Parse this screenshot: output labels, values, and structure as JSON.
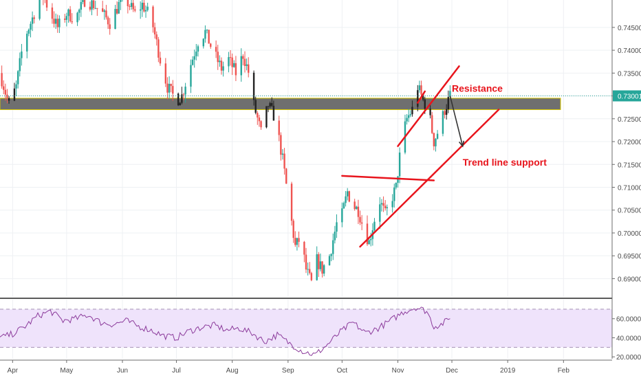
{
  "chart_data": {
    "type": "candlestick",
    "price_axis": {
      "ylim": [
        0.686,
        0.751
      ],
      "ticks": [
        0.745,
        0.74,
        0.735,
        0.73,
        0.725,
        0.72,
        0.715,
        0.71,
        0.705,
        0.7,
        0.695,
        0.69
      ],
      "tick_labels": [
        "0.74500",
        "0.74000",
        "0.73500",
        "0.73000",
        "0.72500",
        "0.72000",
        "0.71500",
        "0.71000",
        "0.70500",
        "0.70000",
        "0.69500",
        "0.69000"
      ],
      "last_price": 0.73001,
      "last_price_label": "0.73001"
    },
    "time_axis": {
      "xlim": [
        "2018-03-25",
        "2019-02-28"
      ],
      "ticks": [
        {
          "date": "2018-04-01",
          "label": "Apr"
        },
        {
          "date": "2018-05-01",
          "label": "May"
        },
        {
          "date": "2018-06-01",
          "label": "Jun"
        },
        {
          "date": "2018-07-01",
          "label": "Jul"
        },
        {
          "date": "2018-08-01",
          "label": "Aug"
        },
        {
          "date": "2018-09-01",
          "label": "Sep"
        },
        {
          "date": "2018-10-01",
          "label": "Oct"
        },
        {
          "date": "2018-11-01",
          "label": "Nov"
        },
        {
          "date": "2018-12-01",
          "label": "Dec"
        },
        {
          "date": "2019-01-01",
          "label": "2019"
        },
        {
          "date": "2019-02-01",
          "label": "Feb"
        }
      ]
    },
    "price_path": [
      [
        "2018-03-25",
        0.735
      ],
      [
        "2018-03-30",
        0.728
      ],
      [
        "2018-04-03",
        0.732
      ],
      [
        "2018-04-07",
        0.742
      ],
      [
        "2018-04-12",
        0.747
      ],
      [
        "2018-04-17",
        0.753
      ],
      [
        "2018-04-21",
        0.749
      ],
      [
        "2018-04-26",
        0.745
      ],
      [
        "2018-05-01",
        0.748
      ],
      [
        "2018-05-06",
        0.747
      ],
      [
        "2018-05-11",
        0.751
      ],
      [
        "2018-05-16",
        0.75
      ],
      [
        "2018-05-21",
        0.748
      ],
      [
        "2018-05-25",
        0.746
      ],
      [
        "2018-05-30",
        0.75
      ],
      [
        "2018-06-03",
        0.751
      ],
      [
        "2018-06-08",
        0.748
      ],
      [
        "2018-06-12",
        0.75
      ],
      [
        "2018-06-17",
        0.747
      ],
      [
        "2018-06-22",
        0.738
      ],
      [
        "2018-06-26",
        0.732
      ],
      [
        "2018-07-01",
        0.729
      ],
      [
        "2018-07-04",
        0.73
      ],
      [
        "2018-07-09",
        0.737
      ],
      [
        "2018-07-13",
        0.742
      ],
      [
        "2018-07-17",
        0.744
      ],
      [
        "2018-07-21",
        0.74
      ],
      [
        "2018-07-26",
        0.736
      ],
      [
        "2018-07-30",
        0.738
      ],
      [
        "2018-08-03",
        0.735
      ],
      [
        "2018-08-07",
        0.739
      ],
      [
        "2018-08-11",
        0.734
      ],
      [
        "2018-08-13",
        0.728
      ],
      [
        "2018-08-17",
        0.722
      ],
      [
        "2018-08-21",
        0.728
      ],
      [
        "2018-08-25",
        0.725
      ],
      [
        "2018-08-29",
        0.716
      ],
      [
        "2018-09-02",
        0.705
      ],
      [
        "2018-09-05",
        0.697
      ],
      [
        "2018-09-08",
        0.699
      ],
      [
        "2018-09-11",
        0.692
      ],
      [
        "2018-09-14",
        0.689
      ],
      [
        "2018-09-17",
        0.694
      ],
      [
        "2018-09-20",
        0.692
      ],
      [
        "2018-09-24",
        0.695
      ],
      [
        "2018-09-28",
        0.702
      ],
      [
        "2018-10-01",
        0.704
      ],
      [
        "2018-10-04",
        0.709
      ],
      [
        "2018-10-07",
        0.706
      ],
      [
        "2018-10-10",
        0.705
      ],
      [
        "2018-10-13",
        0.701
      ],
      [
        "2018-10-16",
        0.698
      ],
      [
        "2018-10-19",
        0.703
      ],
      [
        "2018-10-22",
        0.707
      ],
      [
        "2018-10-25",
        0.704
      ],
      [
        "2018-10-28",
        0.707
      ],
      [
        "2018-10-31",
        0.71
      ],
      [
        "2018-11-03",
        0.72
      ],
      [
        "2018-11-06",
        0.725
      ],
      [
        "2018-11-09",
        0.727
      ],
      [
        "2018-11-12",
        0.732
      ],
      [
        "2018-11-15",
        0.729
      ],
      [
        "2018-11-18",
        0.727
      ],
      [
        "2018-11-21",
        0.72
      ],
      [
        "2018-11-24",
        0.723
      ],
      [
        "2018-11-27",
        0.727
      ],
      [
        "2018-11-30",
        0.73
      ]
    ],
    "support_resistance_zone": {
      "from": 0.727,
      "to": 0.7295
    },
    "drawings": [
      {
        "name": "upper-channel-line",
        "from": [
          "2018-11-01",
          0.719
        ],
        "to": [
          "2018-12-05",
          0.7365
        ]
      },
      {
        "name": "lower-channel-stub",
        "from": [
          "2018-11-12",
          0.7285
        ],
        "to": [
          "2018-11-16",
          0.731
        ]
      },
      {
        "name": "trend-line-support",
        "from": [
          "2018-10-11",
          0.697
        ],
        "to": [
          "2018-12-27",
          0.727
        ]
      },
      {
        "name": "horizontal-neckline",
        "from": [
          "2018-10-01",
          0.7125
        ],
        "to": [
          "2018-11-21",
          0.7115
        ]
      }
    ],
    "arrow": {
      "from": [
        "2018-11-30",
        0.73
      ],
      "to": [
        "2018-12-07",
        0.719
      ]
    },
    "annotations": [
      {
        "text": "Resistance",
        "at": [
          "2018-12-01",
          0.7315
        ]
      },
      {
        "text": "Trend line support",
        "at": [
          "2018-12-07",
          0.7153
        ]
      }
    ],
    "rsi": {
      "ylim": [
        18,
        80
      ],
      "ticks": [
        60,
        40,
        20
      ],
      "tick_labels": [
        "60.0000",
        "40.0000",
        "20.0000"
      ],
      "band": [
        30,
        70
      ],
      "path": [
        [
          "2018-03-25",
          40
        ],
        [
          "2018-04-01",
          44
        ],
        [
          "2018-04-08",
          52
        ],
        [
          "2018-04-15",
          63
        ],
        [
          "2018-04-22",
          68
        ],
        [
          "2018-04-29",
          58
        ],
        [
          "2018-05-06",
          60
        ],
        [
          "2018-05-13",
          64
        ],
        [
          "2018-05-20",
          56
        ],
        [
          "2018-05-27",
          54
        ],
        [
          "2018-06-03",
          58
        ],
        [
          "2018-06-10",
          52
        ],
        [
          "2018-06-17",
          48
        ],
        [
          "2018-06-24",
          42
        ],
        [
          "2018-07-01",
          40
        ],
        [
          "2018-07-08",
          47
        ],
        [
          "2018-07-15",
          51
        ],
        [
          "2018-07-22",
          53
        ],
        [
          "2018-07-29",
          48
        ],
        [
          "2018-08-05",
          50
        ],
        [
          "2018-08-12",
          45
        ],
        [
          "2018-08-19",
          36
        ],
        [
          "2018-08-26",
          43
        ],
        [
          "2018-09-02",
          34
        ],
        [
          "2018-09-09",
          26
        ],
        [
          "2018-09-16",
          22
        ],
        [
          "2018-09-23",
          33
        ],
        [
          "2018-09-30",
          46
        ],
        [
          "2018-10-07",
          56
        ],
        [
          "2018-10-14",
          45
        ],
        [
          "2018-10-21",
          50
        ],
        [
          "2018-10-28",
          58
        ],
        [
          "2018-11-04",
          67
        ],
        [
          "2018-11-11",
          72
        ],
        [
          "2018-11-17",
          68
        ],
        [
          "2018-11-21",
          52
        ],
        [
          "2018-11-25",
          54
        ],
        [
          "2018-11-30",
          60
        ]
      ]
    }
  }
}
